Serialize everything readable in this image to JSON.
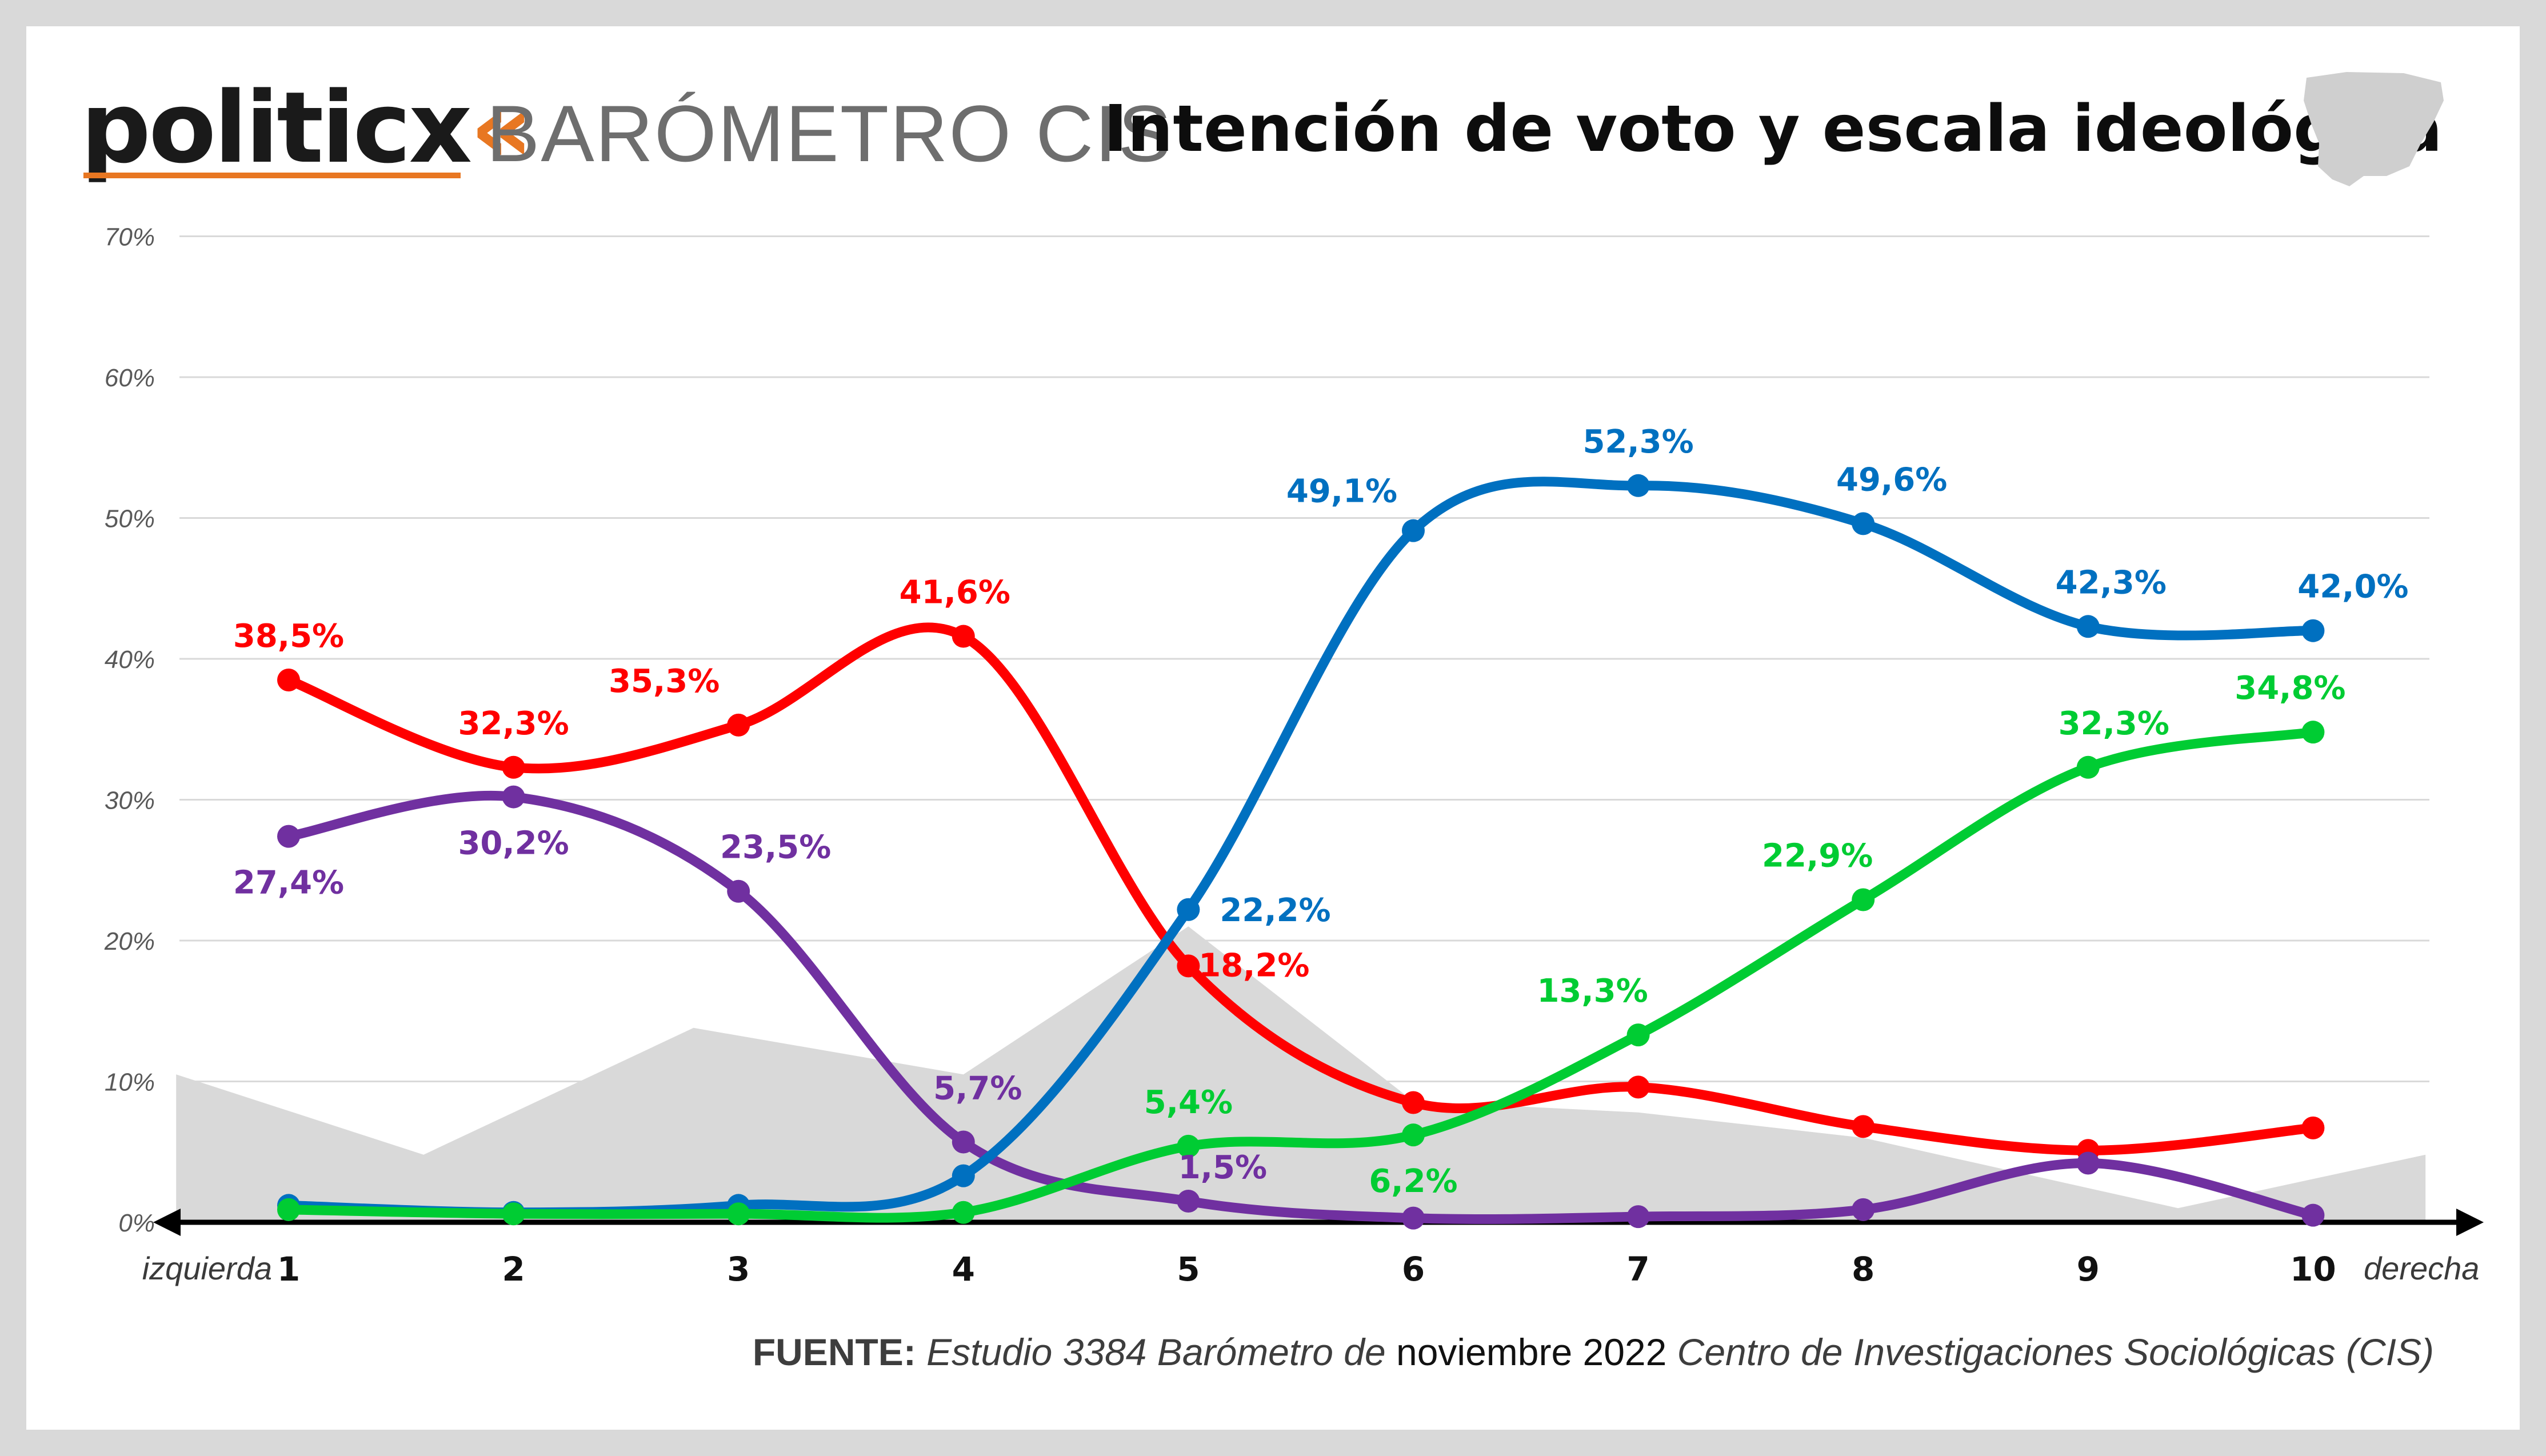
{
  "header": {
    "brand": "politicx",
    "brand_mark": "«",
    "report": "BARÓMETRO CIS",
    "title": "Intención de voto y escala ideológica",
    "map_icon": "spain-map-icon"
  },
  "source": {
    "label": "FUENTE:",
    "study": "Estudio 3384 Barómetro de",
    "date": "noviembre 2022",
    "org": "Centro de Investigaciones Sociológicas (CIS)"
  },
  "chart_data": {
    "type": "line",
    "title": "Intención de voto y escala ideológica",
    "xlabel_left": "izquierda",
    "xlabel_right": "derecha",
    "categories": [
      "1",
      "2",
      "3",
      "4",
      "5",
      "6",
      "7",
      "8",
      "9",
      "10"
    ],
    "y_ticks": [
      "0%",
      "10%",
      "20%",
      "30%",
      "40%",
      "50%",
      "60%",
      "70%"
    ],
    "ylim": [
      0,
      70
    ],
    "grid": true,
    "background_area": {
      "color": "#d9d9d9",
      "x": [
        0.5,
        1.6,
        2.8,
        4.0,
        5.0,
        6.0,
        7.0,
        8.0,
        9.4,
        10.5
      ],
      "values": [
        10.5,
        4.8,
        13.8,
        10.5,
        21.0,
        8.6,
        7.8,
        6.0,
        1.0,
        4.8
      ]
    },
    "series": [
      {
        "name": "red",
        "color": "#ff0000",
        "values": [
          38.5,
          32.3,
          35.3,
          41.6,
          18.2,
          8.5,
          9.6,
          6.8,
          5.1,
          6.7
        ],
        "labels": [
          "38,5%",
          "32,3%",
          "35,3%",
          "41,6%",
          "18,2%",
          "",
          "",
          "",
          "",
          ""
        ]
      },
      {
        "name": "purple",
        "color": "#7030a0",
        "values": [
          27.4,
          30.2,
          23.5,
          5.7,
          1.5,
          0.3,
          0.4,
          0.9,
          4.2,
          0.5
        ],
        "labels": [
          "27,4%",
          "30,2%",
          "23,5%",
          "5,7%",
          "1,5%",
          "",
          "",
          "",
          "",
          ""
        ]
      },
      {
        "name": "blue",
        "color": "#0070c0",
        "values": [
          1.2,
          0.7,
          1.2,
          3.3,
          22.2,
          49.1,
          52.3,
          49.6,
          42.3,
          42.0
        ],
        "labels": [
          "",
          "",
          "",
          "",
          "22,2%",
          "49,1%",
          "52,3%",
          "49,6%",
          "42,3%",
          "42,0%"
        ]
      },
      {
        "name": "green",
        "color": "#00cc33",
        "values": [
          0.9,
          0.6,
          0.6,
          0.7,
          5.4,
          6.2,
          13.3,
          22.9,
          32.3,
          34.8
        ],
        "labels": [
          "",
          "",
          "",
          "",
          "5,4%",
          "6,2%",
          "13,3%",
          "22,9%",
          "32,3%",
          "34,8%"
        ]
      }
    ]
  }
}
